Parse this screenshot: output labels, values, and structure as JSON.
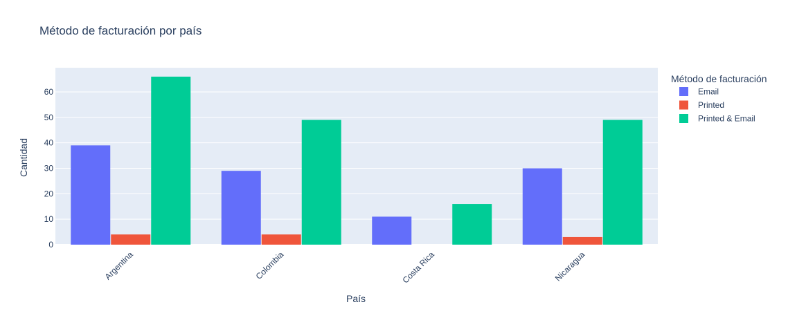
{
  "chart_data": {
    "type": "bar",
    "title": "Método de facturación por país",
    "xlabel": "País",
    "ylabel": "Cantidad",
    "categories": [
      "Argentina",
      "Colombia",
      "Costa Rica",
      "Nicaragua"
    ],
    "series": [
      {
        "name": "Email",
        "values": [
          39,
          29,
          11,
          30
        ],
        "color": "#636efa"
      },
      {
        "name": "Printed",
        "values": [
          4,
          4,
          0,
          3
        ],
        "color": "#ef553b"
      },
      {
        "name": "Printed & Email",
        "values": [
          66,
          49,
          16,
          49
        ],
        "color": "#00cc96"
      }
    ],
    "ylim": [
      0,
      69.5
    ],
    "yticks": [
      0,
      10,
      20,
      30,
      40,
      50,
      60
    ],
    "legend": {
      "title": "Método de facturación",
      "position": "right"
    },
    "grid": true,
    "plot_background": "#e5ecf6"
  }
}
